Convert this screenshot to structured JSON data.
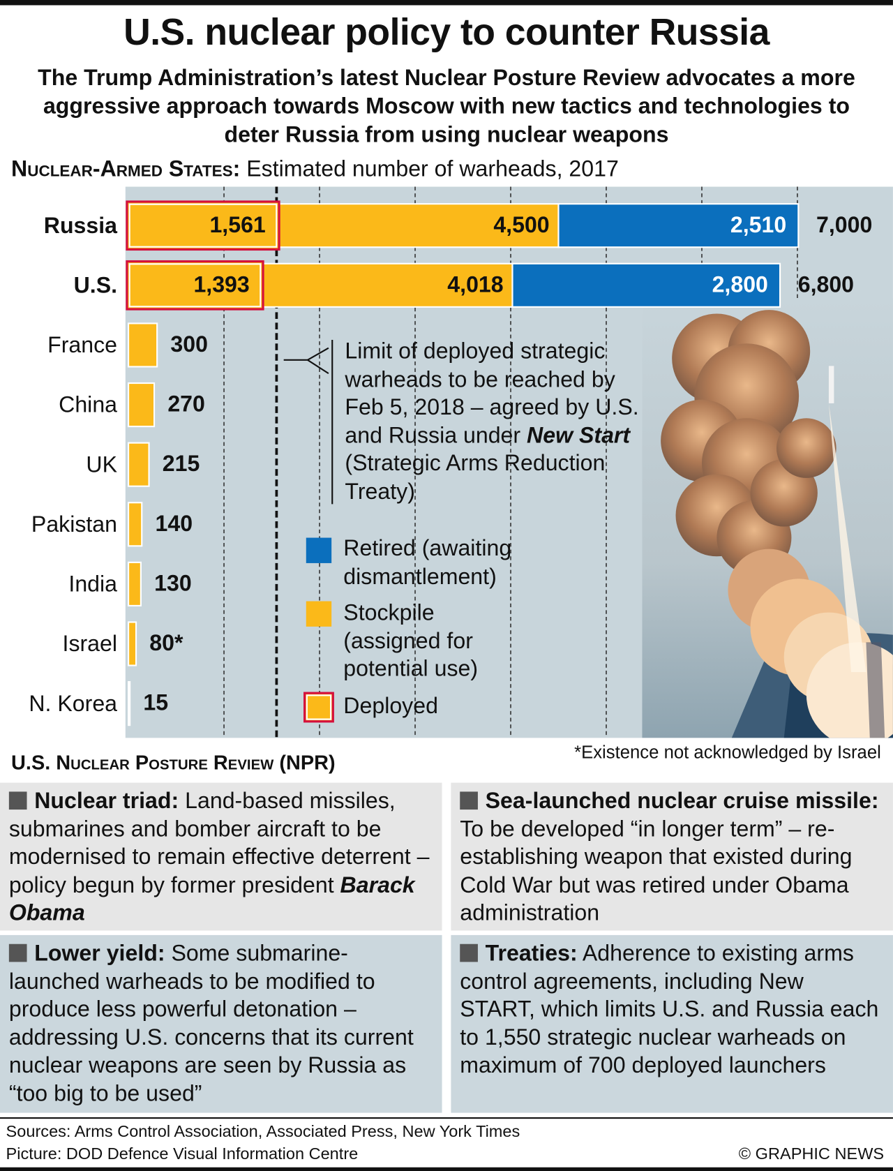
{
  "title": "U.S. nuclear policy to counter Russia",
  "subtitle": "The Trump Administration’s latest Nuclear Posture Review advocates a more aggressive approach towards Moscow with new tactics and technologies to deter Russia from using nuclear weapons",
  "chart_data": {
    "type": "bar",
    "orientation": "horizontal",
    "title_lead": "Nuclear-Armed States:",
    "title": "Estimated number of warheads, 2017",
    "categories": [
      "Russia",
      "U.S.",
      "France",
      "China",
      "UK",
      "Pakistan",
      "India",
      "Israel",
      "N. Korea"
    ],
    "series": [
      {
        "name": "Retired (awaiting dismantlement)",
        "color": "#0b6fbd",
        "values": [
          2510,
          2800,
          null,
          null,
          null,
          null,
          null,
          null,
          null
        ],
        "value_labels": [
          "2,510",
          "2,800",
          null,
          null,
          null,
          null,
          null,
          null,
          null
        ]
      },
      {
        "name": "Stockpile (assigned for potential use)",
        "color": "#fbb919",
        "values": [
          4500,
          4018,
          300,
          270,
          215,
          140,
          130,
          80,
          15
        ],
        "value_labels": [
          "4,500",
          "4,018",
          "300",
          "270",
          "215",
          "140",
          "130",
          "80*",
          "15"
        ]
      },
      {
        "name": "Deployed",
        "color": "#fbb919",
        "outline": "#d5103c",
        "values": [
          1561,
          1393,
          null,
          null,
          null,
          null,
          null,
          null,
          null
        ],
        "value_labels": [
          "1,561",
          "1,393",
          null,
          null,
          null,
          null,
          null,
          null,
          null
        ]
      }
    ],
    "totals": [
      7000,
      6800,
      null,
      null,
      null,
      null,
      null,
      null,
      null
    ],
    "total_labels": [
      "7,000",
      "6,800",
      null,
      null,
      null,
      null,
      null,
      null,
      null
    ],
    "xlim": [
      0,
      7000
    ],
    "xticks": [
      1000,
      2000,
      3000,
      4000,
      5000,
      6000,
      7000
    ],
    "grid": true,
    "limit_line": 1550,
    "annotation": [
      "Limit of deployed strategic warheads to be reached by Feb 5, 2018 – agreed by U.S. and Russia under ",
      "New Start",
      " (Strategic Arms Reduction Treaty)"
    ],
    "footnote": "*Existence not acknowledged by Israel"
  },
  "npr": {
    "title": "U.S. Nuclear Posture Review (NPR)",
    "panels": [
      {
        "heading": "Nuclear triad:",
        "text": "Land-based missiles, submarines and bomber aircraft to be modernised to remain effective deterrent – policy begun by former president ",
        "emphasis": "Barack Obama"
      },
      {
        "heading": "Sea-launched nuclear cruise missile:",
        "text": "To be developed “in longer term” – re-establishing weapon that existed during Cold War but was retired under Obama administration"
      },
      {
        "heading": "Lower yield:",
        "text": "Some submarine-launched warheads to be modified to produce less powerful detonation – addressing U.S. concerns that its current nuclear weapons are seen by Russia as “too big to be used”"
      },
      {
        "heading": "Treaties:",
        "text": "Adherence to existing arms control agreements, including New START, which limits U.S. and Russia each to 1,550 strategic nuclear warheads on maximum of 700 deployed launchers"
      }
    ]
  },
  "sources": "Sources: Arms Control Association, Associated Press, New York Times",
  "picture": "Picture: DOD Defence Visual Information Centre",
  "credit": "© GRAPHIC NEWS"
}
